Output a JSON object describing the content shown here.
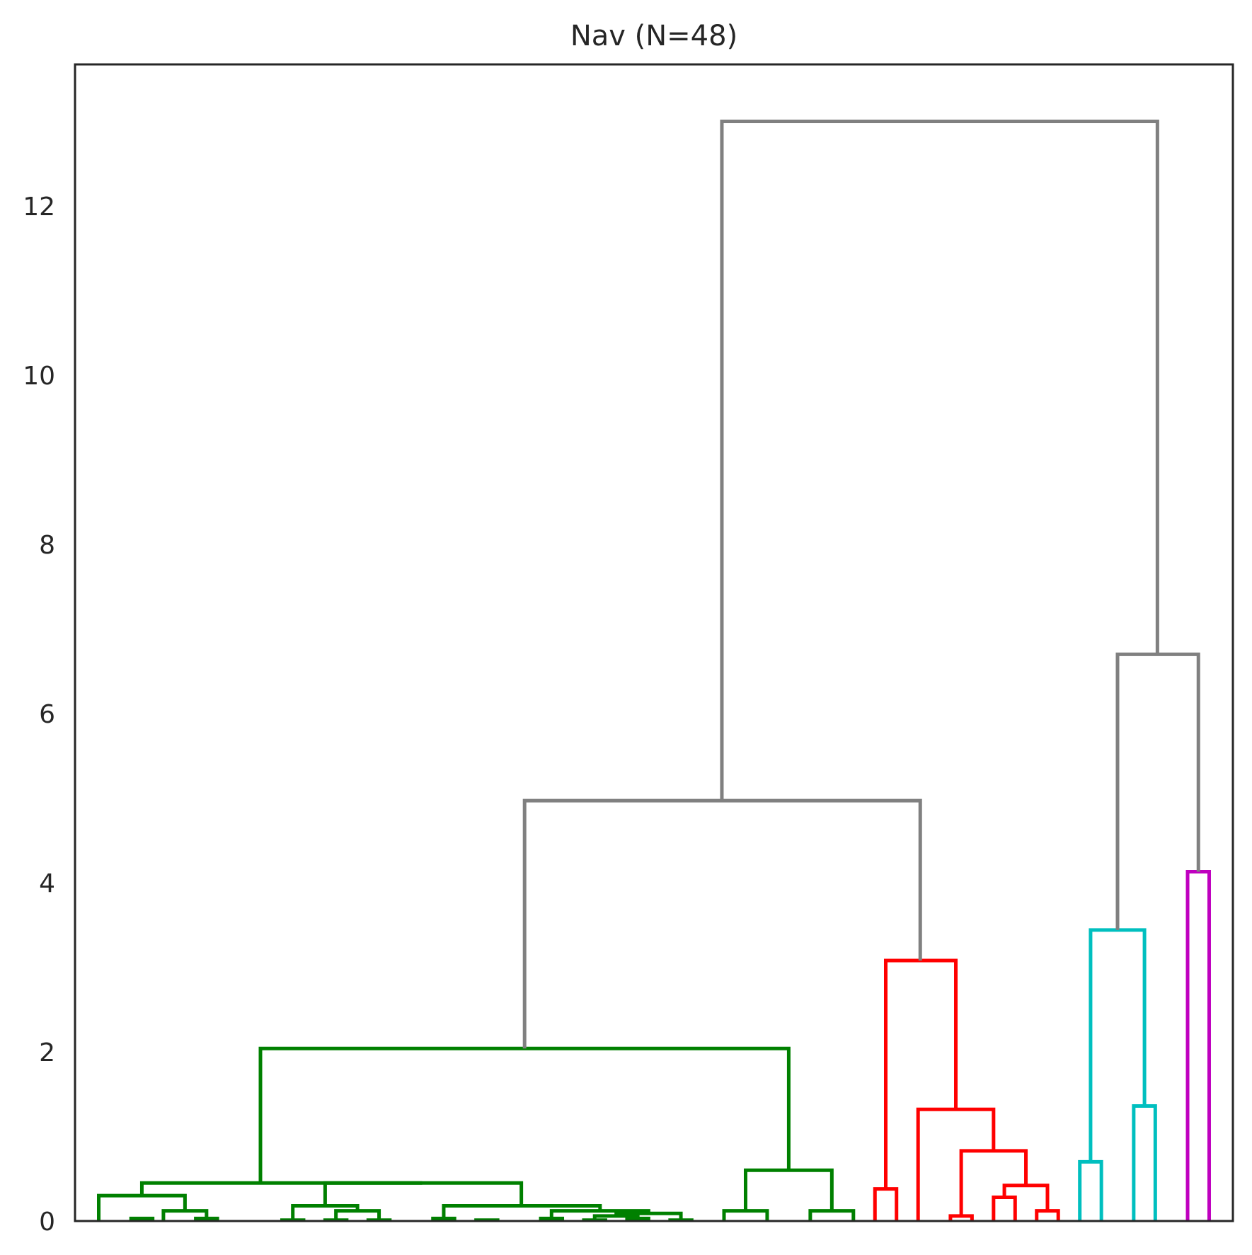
{
  "chart_data": {
    "type": "dendrogram",
    "title": "Nav (N=48)",
    "xlabel": "",
    "ylabel": "",
    "ylim": [
      0,
      13.7
    ],
    "yticks": [
      0,
      2,
      4,
      6,
      8,
      10,
      12
    ],
    "xticks": [],
    "grid": false,
    "legend": "none",
    "colors": {
      "green": "#008000",
      "red": "#ff0000",
      "cyan": "#00bfbf",
      "magenta": "#bf00bf",
      "above_threshold": "#808080",
      "frame": "#262626",
      "text": "#262626"
    },
    "leaves": 48,
    "links": [
      {
        "id": "g1",
        "x": [
          1.5,
          2.5
        ],
        "h": [
          0,
          0
        ],
        "top": 0.03,
        "color": "green"
      },
      {
        "id": "g2",
        "x": [
          4.5,
          5.5
        ],
        "h": [
          0,
          0
        ],
        "top": 0.03,
        "color": "green"
      },
      {
        "id": "g3",
        "x": [
          3,
          5
        ],
        "h": [
          0,
          0.03
        ],
        "top": 0.12,
        "color": "green"
      },
      {
        "id": "g4",
        "x": [
          0,
          4
        ],
        "h": [
          0,
          0.12
        ],
        "top": 0.3,
        "color": "green"
      },
      {
        "id": "g5",
        "x": [
          8.5,
          9.5
        ],
        "h": [
          0,
          0
        ],
        "top": 0.01,
        "color": "green"
      },
      {
        "id": "g6",
        "x": [
          10.5,
          11.5
        ],
        "h": [
          0,
          0
        ],
        "top": 0.01,
        "color": "green"
      },
      {
        "id": "g7",
        "x": [
          12.5,
          13.5
        ],
        "h": [
          0,
          0
        ],
        "top": 0.01,
        "color": "green"
      },
      {
        "id": "g8",
        "x": [
          11,
          13
        ],
        "h": [
          0.01,
          0.01
        ],
        "top": 0.12,
        "color": "green"
      },
      {
        "id": "g9",
        "x": [
          9,
          12
        ],
        "h": [
          0.01,
          0.12
        ],
        "top": 0.18,
        "color": "green"
      },
      {
        "id": "g10",
        "x": [
          15.5,
          16.5
        ],
        "h": [
          0,
          0
        ],
        "top": 0.03,
        "color": "green"
      },
      {
        "id": "g11",
        "x": [
          17.5,
          18.5
        ],
        "h": [
          0,
          0
        ],
        "top": 0.01,
        "color": "green"
      },
      {
        "id": "g12",
        "x": [
          20.5,
          21.5
        ],
        "h": [
          0,
          0
        ],
        "top": 0.03,
        "color": "green"
      },
      {
        "id": "g13",
        "x": [
          22.5,
          23.5
        ],
        "h": [
          0,
          0
        ],
        "top": 0.01,
        "color": "green"
      },
      {
        "id": "g14",
        "x": [
          24.5,
          25.5
        ],
        "h": [
          0,
          0
        ],
        "top": 0.03,
        "color": "green"
      },
      {
        "id": "g15",
        "x": [
          23,
          25
        ],
        "h": [
          0.01,
          0.03
        ],
        "top": 0.06,
        "color": "green"
      },
      {
        "id": "g16",
        "x": [
          26.5,
          27.5
        ],
        "h": [
          0,
          0
        ],
        "top": 0.01,
        "color": "green"
      },
      {
        "id": "g17",
        "x": [
          24,
          27
        ],
        "h": [
          0.06,
          0.01
        ],
        "top": 0.09,
        "color": "green"
      },
      {
        "id": "g18",
        "x": [
          21,
          25.5
        ],
        "h": [
          0.03,
          0.09
        ],
        "top": 0.12,
        "color": "green"
      },
      {
        "id": "g19",
        "x": [
          16,
          23.25
        ],
        "h": [
          0.03,
          0.12
        ],
        "top": 0.18,
        "color": "green"
      },
      {
        "id": "g20",
        "x": [
          10.5,
          19.6
        ],
        "h": [
          0.18,
          0.18
        ],
        "top": 0.45,
        "color": "green"
      },
      {
        "id": "g21",
        "x": [
          2,
          15
        ],
        "h": [
          0.3,
          0.45
        ],
        "top": 0.45,
        "color": "green"
      },
      {
        "id": "g22",
        "x": [
          29,
          31
        ],
        "h": [
          0,
          0
        ],
        "top": 0.12,
        "color": "green"
      },
      {
        "id": "g23",
        "x": [
          33,
          35
        ],
        "h": [
          0,
          0
        ],
        "top": 0.12,
        "color": "green"
      },
      {
        "id": "g24",
        "x": [
          30,
          34
        ],
        "h": [
          0.12,
          0.12
        ],
        "top": 0.6,
        "color": "green"
      },
      {
        "id": "g25",
        "x": [
          7.5,
          32
        ],
        "h": [
          0.45,
          0.6
        ],
        "top": 2.04,
        "color": "green"
      },
      {
        "id": "r1",
        "x": [
          36,
          37
        ],
        "h": [
          0,
          0
        ],
        "top": 0.38,
        "color": "red"
      },
      {
        "id": "r2",
        "x": [
          39.5,
          40.5
        ],
        "h": [
          0,
          0
        ],
        "top": 0.06,
        "color": "red"
      },
      {
        "id": "r3",
        "x": [
          41.5,
          42.5
        ],
        "h": [
          0,
          0
        ],
        "top": 0.28,
        "color": "red"
      },
      {
        "id": "r4",
        "x": [
          43.5,
          44.5
        ],
        "h": [
          0,
          0
        ],
        "top": 0.12,
        "color": "red"
      },
      {
        "id": "r5",
        "x": [
          42,
          44
        ],
        "h": [
          0.28,
          0.12
        ],
        "top": 0.42,
        "color": "red"
      },
      {
        "id": "r6",
        "x": [
          40,
          43
        ],
        "h": [
          0.06,
          0.42
        ],
        "top": 0.83,
        "color": "red"
      },
      {
        "id": "r7",
        "x": [
          38,
          41.5
        ],
        "h": [
          0,
          0.83
        ],
        "top": 1.32,
        "color": "red"
      },
      {
        "id": "r8",
        "x": [
          36.5,
          39.75
        ],
        "h": [
          0.38,
          1.32
        ],
        "top": 3.08,
        "color": "red"
      },
      {
        "id": "c1",
        "x": [
          45.5,
          46.5
        ],
        "h": [
          0,
          0
        ],
        "top": 0.7,
        "color": "cyan"
      },
      {
        "id": "c2",
        "x": [
          48,
          49
        ],
        "h": [
          0,
          0
        ],
        "top": 1.36,
        "color": "cyan"
      },
      {
        "id": "c3",
        "x": [
          46,
          48.5
        ],
        "h": [
          0.7,
          1.36
        ],
        "top": 3.44,
        "color": "cyan"
      },
      {
        "id": "m1",
        "x": [
          50.5,
          51.5
        ],
        "h": [
          0,
          0
        ],
        "top": 4.13,
        "color": "magenta"
      },
      {
        "id": "a1",
        "x": [
          19.75,
          38.1
        ],
        "h": [
          2.04,
          3.08
        ],
        "top": 4.97,
        "color": "above_threshold"
      },
      {
        "id": "a2",
        "x": [
          47.25,
          51
        ],
        "h": [
          3.44,
          4.13
        ],
        "top": 6.7,
        "color": "above_threshold"
      },
      {
        "id": "a3",
        "x": [
          28.9,
          49.1
        ],
        "h": [
          4.97,
          6.7
        ],
        "top": 13.0,
        "color": "above_threshold"
      }
    ]
  }
}
